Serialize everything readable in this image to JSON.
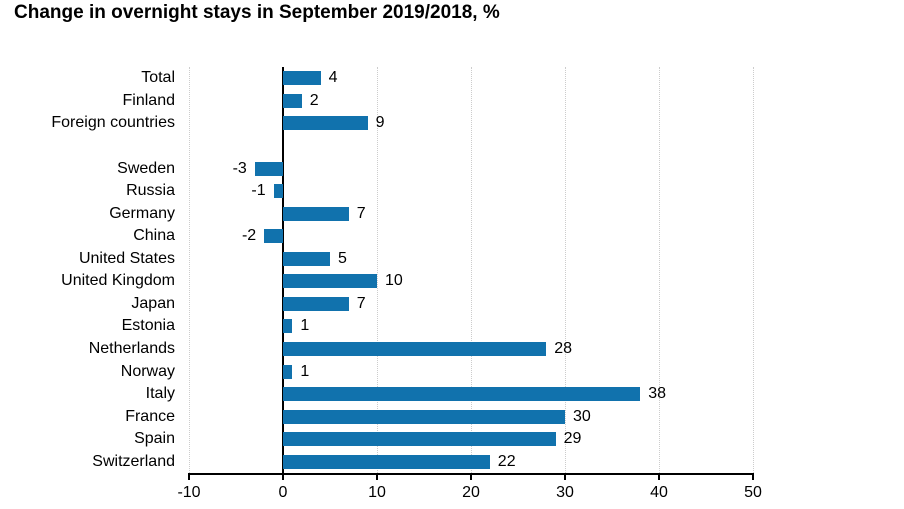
{
  "title": "Change in overnight stays in September 2019/2018, %",
  "chart_data": {
    "type": "bar",
    "orientation": "horizontal",
    "title": "Change in overnight stays in September 2019/2018, %",
    "categories": [
      "Total",
      "Finland",
      "Foreign countries",
      "Sweden",
      "Russia",
      "Germany",
      "China",
      "United States",
      "United Kingdom",
      "Japan",
      "Estonia",
      "Netherlands",
      "Norway",
      "Italy",
      "France",
      "Spain",
      "Switzerland"
    ],
    "values": [
      4,
      2,
      9,
      -3,
      -1,
      7,
      -2,
      5,
      10,
      7,
      1,
      28,
      1,
      38,
      30,
      29,
      22
    ],
    "group_gap_after_index": 2,
    "xlim": [
      -10,
      50
    ],
    "xticks": [
      -10,
      0,
      10,
      20,
      30,
      40,
      50
    ],
    "grid": "vertical-dotted",
    "legend": "none",
    "value_labels": "end-of-bar",
    "bar_color": "#1172ad",
    "gridline_color": "#cccccc",
    "axis_color": "#000000",
    "text_color": "#000000"
  }
}
